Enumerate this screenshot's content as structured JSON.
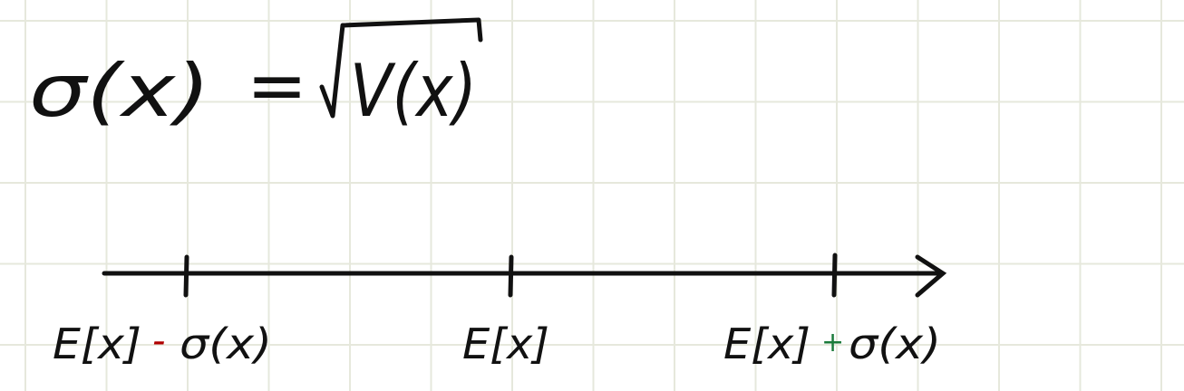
{
  "formula": {
    "lhs": "σ(x)",
    "equals": "=",
    "sqrt_argument": "V(x)"
  },
  "number_line": {
    "tick_labels": [
      {
        "base": "E[x]",
        "operator": "-",
        "operator_color": "#b00000",
        "term": "σ(x)"
      },
      {
        "base": "E[x]"
      },
      {
        "base": "E[x]",
        "operator": "+",
        "operator_color": "#1a7a3a",
        "term": "σ(x)"
      }
    ]
  }
}
